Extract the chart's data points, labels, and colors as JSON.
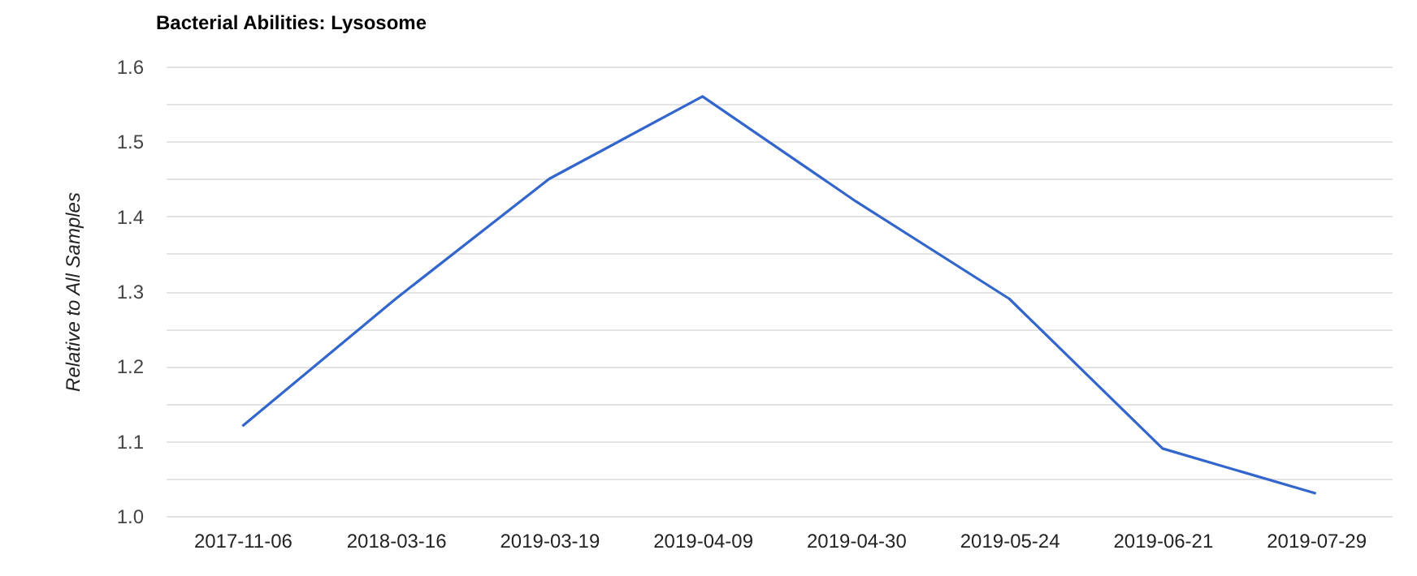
{
  "chart_data": {
    "type": "line",
    "title": "Bacterial Abilities: Lysosome",
    "ylabel": "Relative to All Samples",
    "categories": [
      "2017-11-06",
      "2018-03-16",
      "2019-03-19",
      "2019-04-09",
      "2019-04-30",
      "2019-05-24",
      "2019-06-21",
      "2019-07-29"
    ],
    "series": [
      {
        "color": "#3366cc",
        "values": [
          1.12,
          1.29,
          1.45,
          1.56,
          1.42,
          1.29,
          1.09,
          1.03
        ]
      }
    ],
    "ylim": [
      1.0,
      1.6
    ],
    "yticks": [
      {
        "value": 1.0,
        "label": "1.0"
      },
      {
        "value": 1.05,
        "label": null
      },
      1.1,
      {
        "value": 1.15,
        "label": null
      },
      1.2,
      {
        "value": 1.25,
        "label": null
      },
      1.3,
      {
        "value": 1.35,
        "label": null
      },
      1.4,
      {
        "value": 1.45,
        "label": null
      },
      1.5,
      {
        "value": 1.55,
        "label": null
      },
      1.6
    ],
    "grid": "y",
    "marker": "none",
    "line_style": "solid"
  }
}
